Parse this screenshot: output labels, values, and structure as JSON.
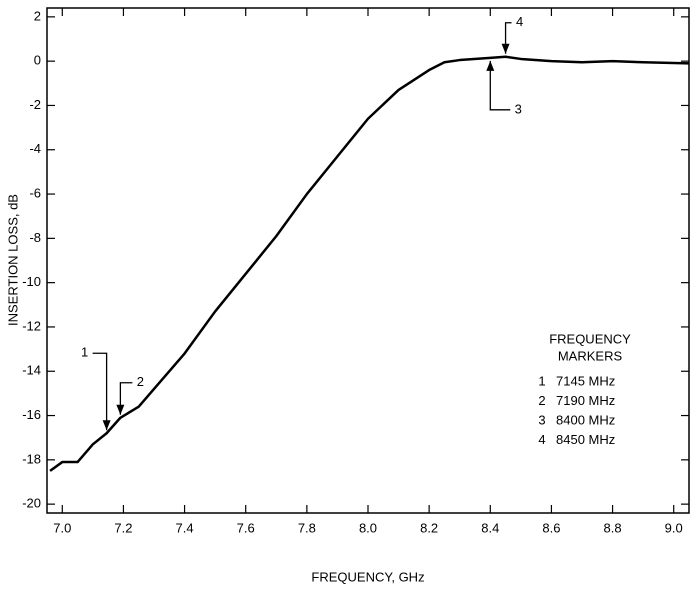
{
  "chart_data": {
    "type": "line",
    "xlabel": "FREQUENCY, GHz",
    "ylabel": "INSERTION LOSS, dB",
    "x": [
      6.96,
      7.0,
      7.05,
      7.1,
      7.145,
      7.19,
      7.25,
      7.3,
      7.4,
      7.5,
      7.6,
      7.7,
      7.8,
      7.9,
      8.0,
      8.1,
      8.2,
      8.25,
      8.3,
      8.4,
      8.45,
      8.5,
      8.6,
      8.7,
      8.8,
      8.9,
      9.05
    ],
    "series": [
      {
        "color": "#000000",
        "values": [
          -18.5,
          -18.1,
          -18.1,
          -17.3,
          -16.8,
          -16.1,
          -15.6,
          -14.8,
          -13.2,
          -11.3,
          -9.6,
          -7.9,
          -6.0,
          -4.3,
          -2.6,
          -1.3,
          -0.4,
          -0.05,
          0.05,
          0.15,
          0.2,
          0.1,
          0.0,
          -0.05,
          0.0,
          -0.05,
          -0.1
        ]
      }
    ],
    "xlim": [
      6.95,
      9.05
    ],
    "xticks": [
      {
        "value": 7,
        "label": "7.0"
      },
      7.2,
      7.4,
      7.6,
      7.8,
      {
        "value": 8,
        "label": "8.0"
      },
      8.2,
      8.4,
      8.6,
      8.8,
      {
        "value": 9,
        "label": "9.0"
      }
    ],
    "ylim": [
      -20.4,
      2.4
    ],
    "yticks": [
      2,
      0,
      -2,
      -4,
      -6,
      -8,
      -10,
      -12,
      -14,
      -16,
      -18,
      -20
    ],
    "grid": false,
    "legend_title": [
      "FREQUENCY",
      "MARKERS"
    ],
    "markers": [
      {
        "label": "1",
        "x": 7.145,
        "y": -16.8,
        "text": "7145 MHz"
      },
      {
        "label": "2",
        "x": 7.19,
        "y": -16.1,
        "text": "7190 MHz"
      },
      {
        "label": "3",
        "x": 8.4,
        "y": 0.15,
        "text": "8400 MHz"
      },
      {
        "label": "4",
        "x": 8.45,
        "y": 0.2,
        "text": "8450 MHz"
      }
    ]
  }
}
